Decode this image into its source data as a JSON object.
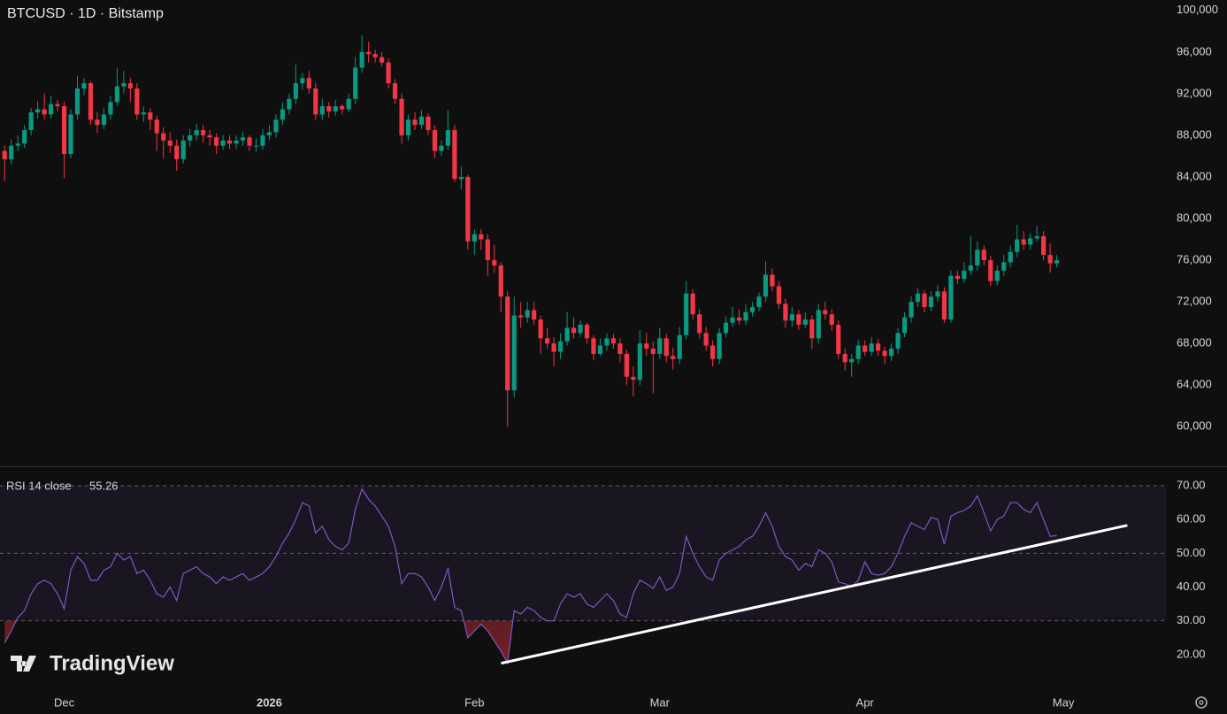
{
  "header": {
    "title": "BTCUSD · 1D · Bitstamp"
  },
  "logo": "TradingView",
  "chart_data": [
    {
      "type": "candlestick",
      "up_color": "#089981",
      "down_color": "#f23645",
      "ylim": [
        56200,
        101000
      ],
      "yticks": [
        {
          "value": 60000,
          "label": "60,000"
        },
        {
          "value": 64000,
          "label": "64,000"
        },
        {
          "value": 68000,
          "label": "68,000"
        },
        {
          "value": 72000,
          "label": "72,000"
        },
        {
          "value": 76000,
          "label": "76,000"
        },
        {
          "value": 80000,
          "label": "80,000"
        },
        {
          "value": 84000,
          "label": "84,000"
        },
        {
          "value": 88000,
          "label": "88,000"
        },
        {
          "value": 92000,
          "label": "92,000"
        },
        {
          "value": 96000,
          "label": "96,000"
        },
        {
          "value": 100000,
          "label": "100,000"
        }
      ],
      "xlim": [
        -0.7,
        175.5
      ],
      "xticks": [
        {
          "value": 9,
          "label": "Dec"
        },
        {
          "value": 40,
          "label": "2026"
        },
        {
          "value": 71,
          "label": "Feb"
        },
        {
          "value": 99,
          "label": "Mar"
        },
        {
          "value": 130,
          "label": "Apr"
        },
        {
          "value": 160,
          "label": "May"
        }
      ],
      "ohlc": [
        [
          86500,
          87000,
          83600,
          85700
        ],
        [
          85700,
          87600,
          85200,
          87000
        ],
        [
          87000,
          88000,
          86500,
          87200
        ],
        [
          87200,
          89000,
          86800,
          88500
        ],
        [
          88500,
          90600,
          88000,
          90200
        ],
        [
          90200,
          91300,
          89600,
          90500
        ],
        [
          90500,
          92000,
          89500,
          90000
        ],
        [
          90000,
          91800,
          89600,
          91000
        ],
        [
          91000,
          91400,
          90300,
          90800
        ],
        [
          90800,
          91200,
          83900,
          86200
        ],
        [
          86200,
          90500,
          85800,
          90000
        ],
        [
          90000,
          93700,
          89500,
          92500
        ],
        [
          92500,
          93500,
          91800,
          93000
        ],
        [
          93000,
          93200,
          89000,
          89500
        ],
        [
          89500,
          90200,
          88200,
          89000
        ],
        [
          89000,
          90600,
          88600,
          90000
        ],
        [
          90000,
          91800,
          89500,
          91200
        ],
        [
          91200,
          94500,
          90800,
          92700
        ],
        [
          92700,
          94200,
          92000,
          93000
        ],
        [
          93000,
          93500,
          91200,
          92500
        ],
        [
          92500,
          93000,
          89500,
          90000
        ],
        [
          90000,
          90800,
          89300,
          90200
        ],
        [
          90200,
          90600,
          88500,
          89500
        ],
        [
          89500,
          89900,
          86500,
          88200
        ],
        [
          88200,
          88800,
          85800,
          87500
        ],
        [
          87500,
          88300,
          86300,
          87000
        ],
        [
          87000,
          87600,
          84600,
          85700
        ],
        [
          85700,
          88000,
          85300,
          87500
        ],
        [
          87500,
          88600,
          86900,
          88000
        ],
        [
          88000,
          89100,
          87500,
          88500
        ],
        [
          88500,
          89000,
          87300,
          88000
        ],
        [
          88000,
          88500,
          87000,
          87800
        ],
        [
          87800,
          88200,
          86200,
          87000
        ],
        [
          87000,
          88000,
          86600,
          87500
        ],
        [
          87500,
          88000,
          86700,
          87200
        ],
        [
          87200,
          88000,
          86700,
          87500
        ],
        [
          87500,
          88300,
          87000,
          87800
        ],
        [
          87800,
          88000,
          86500,
          87000
        ],
        [
          87000,
          87700,
          86400,
          87000
        ],
        [
          87000,
          88600,
          86600,
          88000
        ],
        [
          88000,
          89000,
          87500,
          88300
        ],
        [
          88300,
          90000,
          87800,
          89500
        ],
        [
          89500,
          91200,
          89000,
          90500
        ],
        [
          90500,
          92000,
          90000,
          91500
        ],
        [
          91500,
          94800,
          91000,
          93000
        ],
        [
          93000,
          94000,
          92400,
          93500
        ],
        [
          93500,
          94200,
          92000,
          92500
        ],
        [
          92500,
          93000,
          89500,
          90000
        ],
        [
          90000,
          91500,
          89500,
          90800
        ],
        [
          90800,
          91200,
          89700,
          90300
        ],
        [
          90300,
          91400,
          89900,
          90800
        ],
        [
          90800,
          91000,
          90000,
          90500
        ],
        [
          90500,
          92000,
          90200,
          91500
        ],
        [
          91500,
          95500,
          91000,
          94500
        ],
        [
          94500,
          97600,
          94000,
          96000
        ],
        [
          96000,
          97000,
          95000,
          95800
        ],
        [
          95800,
          96200,
          95000,
          95500
        ],
        [
          95500,
          96000,
          94600,
          95000
        ],
        [
          95000,
          95400,
          92500,
          93000
        ],
        [
          93000,
          93400,
          91000,
          91500
        ],
        [
          91500,
          92000,
          87200,
          88000
        ],
        [
          88000,
          90000,
          87500,
          89500
        ],
        [
          89500,
          90200,
          88500,
          89000
        ],
        [
          89000,
          90400,
          88600,
          89800
        ],
        [
          89800,
          90100,
          88000,
          88500
        ],
        [
          88500,
          89000,
          85800,
          86500
        ],
        [
          86500,
          87500,
          86000,
          87000
        ],
        [
          87000,
          90400,
          86600,
          88500
        ],
        [
          88500,
          89000,
          83500,
          83800
        ],
        [
          83800,
          85000,
          82800,
          84000
        ],
        [
          84000,
          84200,
          77000,
          77800
        ],
        [
          77800,
          79000,
          76500,
          78500
        ],
        [
          78500,
          79000,
          77000,
          78000
        ],
        [
          78000,
          78500,
          74500,
          76000
        ],
        [
          76000,
          77500,
          74800,
          75500
        ],
        [
          75500,
          75800,
          71000,
          72500
        ],
        [
          72500,
          73000,
          60000,
          63500
        ],
        [
          63500,
          72500,
          62800,
          70700
        ],
        [
          70700,
          72000,
          69500,
          70500
        ],
        [
          70500,
          72000,
          70000,
          71200
        ],
        [
          71200,
          72000,
          69800,
          70300
        ],
        [
          70300,
          70700,
          67000,
          68500
        ],
        [
          68500,
          69500,
          67500,
          68000
        ],
        [
          68000,
          68600,
          65800,
          67200
        ],
        [
          67200,
          69000,
          66500,
          68200
        ],
        [
          68200,
          71000,
          67800,
          69500
        ],
        [
          69500,
          70500,
          68500,
          69000
        ],
        [
          69000,
          70200,
          68600,
          69800
        ],
        [
          69800,
          70000,
          68000,
          68500
        ],
        [
          68500,
          68800,
          66400,
          67000
        ],
        [
          67000,
          68500,
          66800,
          67800
        ],
        [
          67800,
          69000,
          67300,
          68500
        ],
        [
          68500,
          68900,
          67500,
          68000
        ],
        [
          68000,
          68500,
          66200,
          67000
        ],
        [
          67000,
          67400,
          64000,
          64800
        ],
        [
          64800,
          65800,
          62900,
          64500
        ],
        [
          64500,
          69300,
          64000,
          68000
        ],
        [
          68000,
          69000,
          66800,
          67500
        ],
        [
          67500,
          68200,
          63200,
          67000
        ],
        [
          67000,
          69500,
          66500,
          68500
        ],
        [
          68500,
          68900,
          66200,
          66800
        ],
        [
          66800,
          67600,
          65500,
          66500
        ],
        [
          66500,
          69600,
          66000,
          68800
        ],
        [
          68800,
          74000,
          68400,
          72800
        ],
        [
          72800,
          73200,
          70300,
          70800
        ],
        [
          70800,
          71300,
          68500,
          69000
        ],
        [
          69000,
          69600,
          67300,
          67800
        ],
        [
          67800,
          68300,
          65800,
          66500
        ],
        [
          66500,
          69500,
          66000,
          69000
        ],
        [
          69000,
          70600,
          68600,
          70000
        ],
        [
          70000,
          71500,
          69600,
          70500
        ],
        [
          70500,
          71300,
          69800,
          70200
        ],
        [
          70200,
          71800,
          69800,
          71000
        ],
        [
          71000,
          72000,
          70600,
          71500
        ],
        [
          71500,
          72900,
          71100,
          72500
        ],
        [
          72500,
          75900,
          72000,
          74600
        ],
        [
          74600,
          75200,
          73000,
          73500
        ],
        [
          73500,
          74000,
          71300,
          71800
        ],
        [
          71800,
          72300,
          69500,
          70200
        ],
        [
          70200,
          71500,
          69600,
          70800
        ],
        [
          70800,
          71200,
          69300,
          69800
        ],
        [
          69800,
          71000,
          69500,
          70300
        ],
        [
          70300,
          70700,
          67500,
          68500
        ],
        [
          68500,
          71800,
          68000,
          71200
        ],
        [
          71200,
          72000,
          70300,
          70800
        ],
        [
          70800,
          71300,
          69200,
          69800
        ],
        [
          69800,
          70200,
          66500,
          67000
        ],
        [
          67000,
          67500,
          65400,
          66200
        ],
        [
          66200,
          67000,
          64800,
          66500
        ],
        [
          66500,
          68300,
          66000,
          67800
        ],
        [
          67800,
          68300,
          66800,
          67200
        ],
        [
          67200,
          68600,
          66800,
          68000
        ],
        [
          68000,
          68400,
          66800,
          67300
        ],
        [
          67300,
          67700,
          66000,
          66800
        ],
        [
          66800,
          68000,
          66300,
          67500
        ],
        [
          67500,
          69500,
          67000,
          69000
        ],
        [
          69000,
          71000,
          68600,
          70500
        ],
        [
          70500,
          72500,
          70000,
          72000
        ],
        [
          72000,
          73300,
          71500,
          72800
        ],
        [
          72800,
          73100,
          71000,
          71500
        ],
        [
          71500,
          73000,
          71100,
          72500
        ],
        [
          72500,
          73600,
          72000,
          73000
        ],
        [
          73000,
          73400,
          70000,
          70300
        ],
        [
          70300,
          75000,
          70000,
          74500
        ],
        [
          74500,
          75000,
          73700,
          74200
        ],
        [
          74200,
          75800,
          73800,
          75000
        ],
        [
          75000,
          78300,
          74600,
          75500
        ],
        [
          75500,
          77800,
          75000,
          77000
        ],
        [
          77000,
          77400,
          75500,
          76000
        ],
        [
          76000,
          76400,
          73500,
          74000
        ],
        [
          74000,
          75500,
          73600,
          75000
        ],
        [
          75000,
          76500,
          74500,
          75800
        ],
        [
          75800,
          77400,
          75300,
          76800
        ],
        [
          76800,
          79400,
          76300,
          78000
        ],
        [
          78000,
          78800,
          77000,
          77500
        ],
        [
          77500,
          78600,
          77000,
          78100
        ],
        [
          78100,
          79300,
          77800,
          78300
        ],
        [
          78300,
          78800,
          76000,
          76500
        ],
        [
          76500,
          77600,
          74800,
          75700
        ],
        [
          75700,
          76500,
          75300,
          76000
        ]
      ]
    },
    {
      "type": "line",
      "title": "RSI 14 close",
      "color": "#7e57c2",
      "ylim": [
        10,
        75.5
      ],
      "yticks": [
        {
          "value": 20,
          "label": "20.00"
        },
        {
          "value": 30,
          "label": "30.00"
        },
        {
          "value": 40,
          "label": "40.00"
        },
        {
          "value": 50,
          "label": "50.00"
        },
        {
          "value": 60,
          "label": "60.00"
        },
        {
          "value": 70,
          "label": "70.00"
        }
      ],
      "overbought": 70,
      "midline": 50,
      "oversold": 30,
      "values": [
        23.4,
        27,
        31,
        33,
        38,
        41,
        42,
        41,
        38,
        33.6,
        45,
        49,
        47,
        42,
        42,
        45,
        46,
        50,
        48,
        49,
        44,
        45,
        42,
        38,
        37,
        40,
        36,
        44,
        45,
        46,
        44,
        43,
        41,
        43,
        42,
        43,
        44,
        42,
        43,
        44,
        46,
        49,
        53,
        56,
        60,
        65,
        64,
        56,
        58,
        54,
        52,
        51,
        53,
        63,
        69,
        66,
        64,
        61,
        58,
        52,
        41,
        44,
        44,
        43,
        40,
        36,
        40,
        45.4,
        34,
        33,
        25,
        27,
        29,
        27,
        24,
        21,
        17.5,
        33,
        32,
        34,
        33,
        31,
        30,
        30,
        35,
        38,
        37,
        38,
        35,
        34,
        36,
        38,
        36,
        32,
        31,
        38,
        42,
        41,
        39.6,
        43,
        39,
        40,
        44,
        55,
        50,
        46,
        43,
        42,
        48,
        50,
        51,
        52,
        54,
        55,
        58,
        62,
        58,
        52,
        49,
        48,
        45,
        47,
        46,
        51,
        50,
        47.5,
        41.5,
        41,
        40,
        42,
        47.5,
        44,
        43.5,
        44,
        46,
        50,
        55,
        59,
        58,
        57,
        60.6,
        60,
        52.7,
        61,
        62,
        62.7,
        64,
        67,
        62,
        56.6,
        60,
        61,
        65,
        65,
        63,
        62,
        65,
        60,
        55,
        55.26
      ],
      "trendline": {
        "x": [
          75.2,
          169.5
        ],
        "y": [
          17.5,
          58.2
        ],
        "color": "#ffffff"
      }
    }
  ]
}
